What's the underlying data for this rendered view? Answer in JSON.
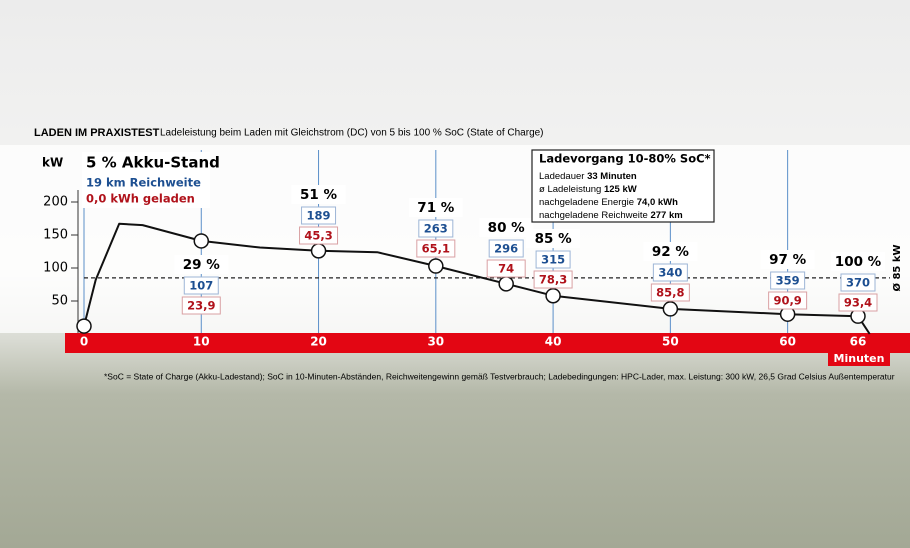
{
  "chart_data": {
    "type": "line",
    "title": "LADEN IM PRAXISTEST",
    "subtitle": "Ladeleistung beim Laden mit Gleichstrom (DC) von 5 bis 100 % SoC (State of Charge)",
    "y_label": "kW",
    "x_label": "Minuten",
    "footnote": "*SoC = State of Charge (Akku-Ladestand); SoC in 10-Minuten-Abständen, Reichweitengewinn gemäß Testverbrauch; Ladebedingungen: HPC-Lader, max. Leistung: 300 kW, 26,5 Grad Celsius Außentemperatur",
    "xlim": [
      0,
      66
    ],
    "xticks": [
      0,
      10,
      20,
      30,
      40,
      50,
      60,
      66
    ],
    "ylim": [
      0,
      200
    ],
    "yticks": [
      50,
      100,
      150,
      200
    ],
    "x": [
      0,
      1,
      3,
      5,
      10,
      15,
      20,
      25,
      30,
      36,
      40,
      50,
      60,
      66,
      67
    ],
    "values": [
      12,
      82,
      167,
      165,
      141,
      131,
      126,
      124,
      103,
      76,
      58,
      38,
      30,
      27,
      0
    ],
    "color": "#111111",
    "reference_line": {
      "value": 85,
      "label": "Ø 85 kW"
    },
    "markers": [
      {
        "x": 0,
        "y": 12,
        "soc": "5 % Akku-Stand",
        "range": "19 km Reichweite",
        "energy": "0,0 kWh geladen"
      },
      {
        "x": 10,
        "y": 141,
        "soc": "29 %",
        "range": "107",
        "energy": "23,9"
      },
      {
        "x": 20,
        "y": 126,
        "soc": "51 %",
        "range": "189",
        "energy": "45,3"
      },
      {
        "x": 30,
        "y": 103,
        "soc": "71 %",
        "range": "263",
        "energy": "65,1"
      },
      {
        "x": 36,
        "y": 76,
        "soc": "80 %",
        "range": "296",
        "energy": "74"
      },
      {
        "x": 40,
        "y": 58,
        "soc": "85 %",
        "range": "315",
        "energy": "78,3"
      },
      {
        "x": 50,
        "y": 38,
        "soc": "92 %",
        "range": "340",
        "energy": "85,8"
      },
      {
        "x": 60,
        "y": 30,
        "soc": "97 %",
        "range": "359",
        "energy": "90,9"
      },
      {
        "x": 66,
        "y": 27,
        "soc": "100 %",
        "range": "370",
        "energy": "93,4"
      }
    ],
    "info_box": {
      "title": "Ladevorgang 10-80% SoC*",
      "rows": [
        [
          "Ladedauer",
          "33 Minuten"
        ],
        [
          "ø Ladeleistung",
          "125 kW"
        ],
        [
          "nachgeladene Energie",
          "74,0 kWh"
        ],
        [
          "nachgeladene Reichweite",
          "277 km"
        ]
      ]
    }
  }
}
